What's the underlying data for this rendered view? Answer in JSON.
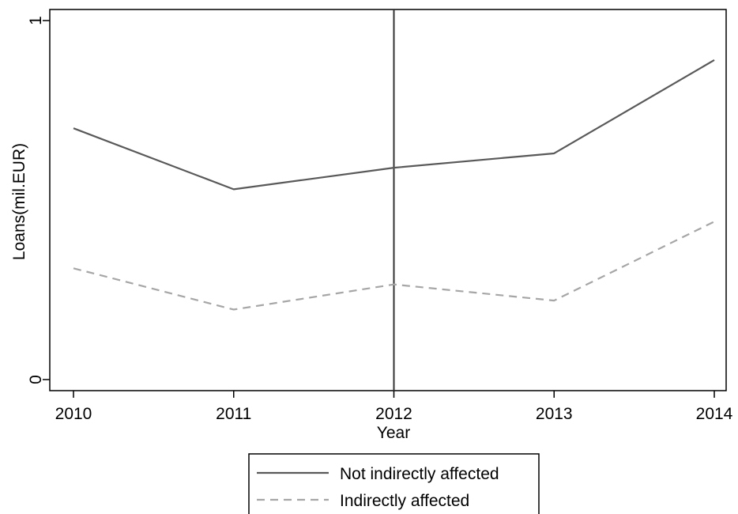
{
  "chart_data": {
    "type": "line",
    "x": [
      2010,
      2011,
      2012,
      2013,
      2014
    ],
    "x_tick_labels": [
      "2010",
      "2011",
      "2012",
      "2013",
      "2014"
    ],
    "y_tick_labels": [
      "0",
      "1"
    ],
    "y_ticks": [
      0,
      1
    ],
    "xlabel": "Year",
    "ylabel": "Loans(mil.EUR)",
    "xlim": [
      2010,
      2014
    ],
    "ylim": [
      0,
      1
    ],
    "grid": false,
    "legend_position": "bottom",
    "reference_line": {
      "x": 2012
    },
    "series": [
      {
        "name": "Not indirectly affected",
        "values": [
          0.7,
          0.53,
          0.59,
          0.63,
          0.89
        ],
        "color": "#595959",
        "dash": "solid"
      },
      {
        "name": "Indirectly affected",
        "values": [
          0.31,
          0.195,
          0.265,
          0.22,
          0.44
        ],
        "color": "#a6a6a6",
        "dash": "dashed"
      }
    ]
  }
}
